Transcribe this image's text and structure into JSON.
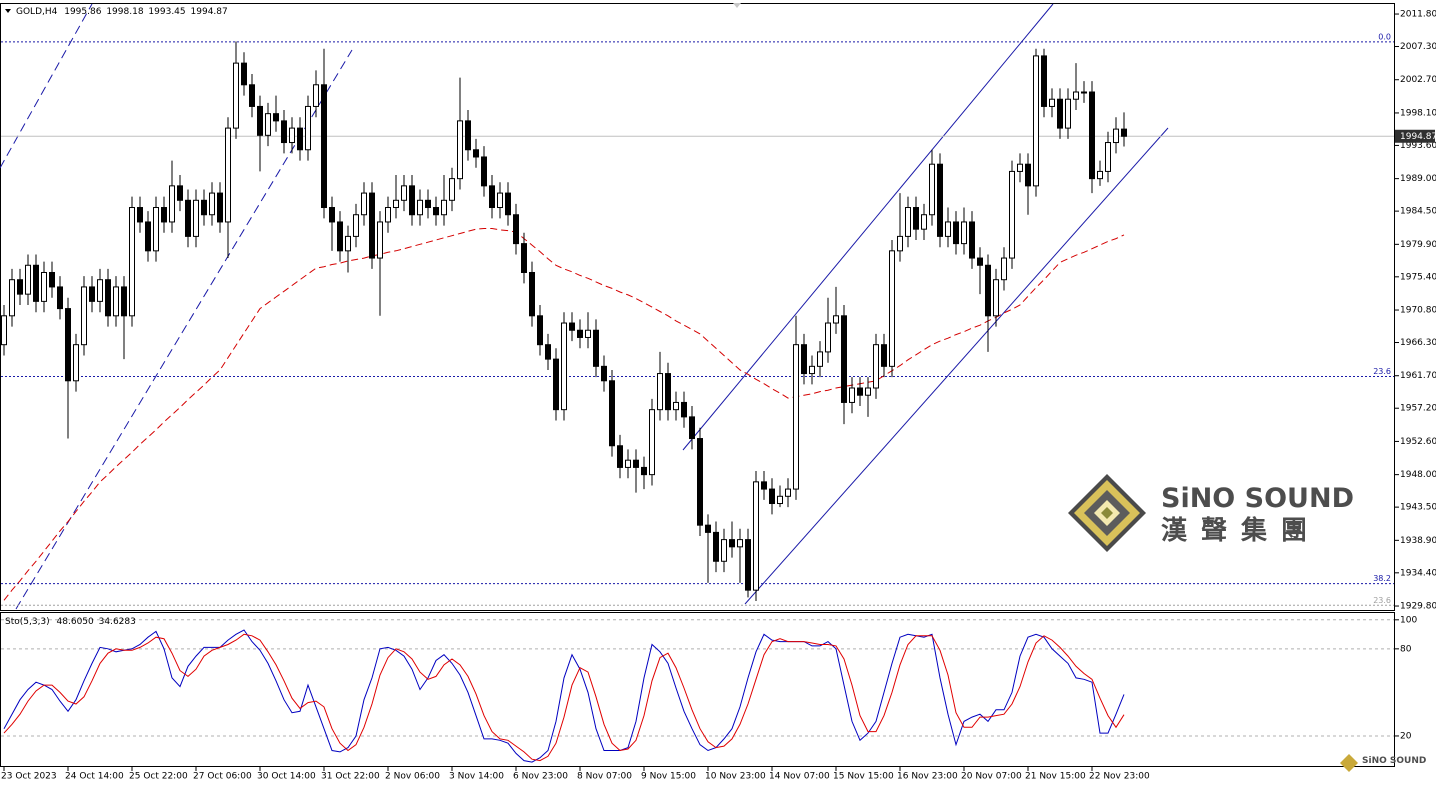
{
  "chart_data": {
    "type": "candlestick",
    "symbol": "GOLD,H4",
    "categories": [
      "23 Oct 2023",
      null,
      null,
      null,
      null,
      null,
      null,
      null,
      "24 Oct 14:00",
      null,
      null,
      null,
      null,
      null,
      null,
      null,
      "25 Oct 22:00",
      null,
      null,
      null,
      null,
      null,
      null,
      null,
      "27 Oct 06:00",
      null,
      null,
      null,
      null,
      null,
      null,
      null,
      "30 Oct 14:00",
      null,
      null,
      null,
      null,
      null,
      null,
      null,
      "31 Oct 22:00",
      null,
      null,
      null,
      null,
      null,
      null,
      null,
      "2 Nov 06:00",
      null,
      null,
      null,
      null,
      null,
      null,
      null,
      "3 Nov 14:00",
      null,
      null,
      null,
      null,
      null,
      null,
      null,
      "6 Nov 23:00",
      null,
      null,
      null,
      null,
      null,
      null,
      null,
      "8 Nov 07:00",
      null,
      null,
      null,
      null,
      null,
      null,
      null,
      "9 Nov 15:00",
      null,
      null,
      null,
      null,
      null,
      null,
      null,
      "10 Nov 23:00",
      null,
      null,
      null,
      null,
      null,
      null,
      null,
      "14 Nov 07:00",
      null,
      null,
      null,
      null,
      null,
      null,
      null,
      "15 Nov 15:00",
      null,
      null,
      null,
      null,
      null,
      null,
      null,
      "16 Nov 23:00",
      null,
      null,
      null,
      null,
      null,
      null,
      null,
      "20 Nov 07:00",
      null,
      null,
      null,
      null,
      null,
      null,
      null,
      "21 Nov 15:00",
      null,
      null,
      null,
      null,
      null,
      null,
      null,
      "22 Nov 23:00",
      null,
      null,
      null,
      null
    ],
    "open": [
      1966,
      1970,
      1975,
      1973,
      1977,
      1972,
      1976,
      1974,
      1971,
      1961,
      1966,
      1974,
      1972,
      1975,
      1970,
      1974,
      1970,
      1985,
      1983,
      1979,
      1985,
      1983,
      1988,
      1986,
      1981,
      1986,
      1984,
      1987,
      1983,
      1996,
      2005,
      2002,
      1999,
      1995,
      1998,
      1997,
      1994,
      1996,
      1993,
      1999,
      2002,
      1985,
      1983,
      1979,
      1981,
      1984,
      1987,
      1978,
      1983,
      1985,
      1986,
      1988,
      1984,
      1986,
      1985,
      1984,
      1986,
      1989,
      1997,
      1993,
      1992,
      1988,
      1985,
      1987,
      1984,
      1980,
      1976,
      1970,
      1966,
      1964,
      1957,
      1969,
      1968,
      1967,
      1968,
      1963,
      1961,
      1952,
      1949,
      1950,
      1949,
      1948,
      1957,
      1962,
      1957,
      1958,
      1956,
      1953,
      1941,
      1940,
      1936,
      1939,
      1938,
      1939,
      1932,
      1947,
      1946,
      1944,
      1945,
      1946,
      1966,
      1962,
      1963,
      1965,
      1969,
      1970,
      1958,
      1960,
      1959,
      1960,
      1966,
      1963,
      1979,
      1981,
      1985,
      1982,
      1984,
      1991,
      1981,
      1983,
      1980,
      1983,
      1978,
      1977,
      1970,
      1975,
      1978,
      1990,
      1991,
      1988,
      2006,
      1999,
      2000,
      1996,
      2000,
      2001,
      2001,
      1989,
      1990,
      1994,
      1995.86
    ],
    "high": [
      1971.5,
      1976.5,
      1976.5,
      1978.5,
      1978.5,
      1977.5,
      1977.5,
      1975.5,
      1972.5,
      1967.5,
      1975.5,
      1975.5,
      1976.5,
      1976.5,
      1975.5,
      1975.5,
      1986.5,
      1986.5,
      1984.5,
      1986.5,
      1986.5,
      1991.5,
      1989.5,
      1987.5,
      1987.5,
      1987.5,
      1988.5,
      1988.5,
      1997.5,
      2008,
      2006.5,
      2003.5,
      2000.5,
      1999.5,
      2000.5,
      1998.5,
      1997.5,
      1997.5,
      2000.5,
      2004,
      2007,
      1986.5,
      1984.5,
      1982.5,
      1985.5,
      1988.5,
      1988.5,
      1984.5,
      1986.5,
      1989.5,
      1989.5,
      1989.5,
      1987.5,
      1987.5,
      1986.5,
      1989.5,
      1990.5,
      2003,
      1998.5,
      1994.5,
      1993.5,
      1989.5,
      1988.5,
      1988.5,
      1985.5,
      1981.5,
      1977.5,
      1971.5,
      1967.5,
      1965.5,
      1970.5,
      1970.5,
      1969.5,
      1970.5,
      1969.5,
      1964.5,
      1962.5,
      1953.5,
      1951.5,
      1951.5,
      1950.5,
      1958.5,
      1965,
      1963.5,
      1959.5,
      1959.5,
      1957.5,
      1954.5,
      1942.5,
      1941.5,
      1940.5,
      1941.5,
      1940.5,
      1940.5,
      1948.5,
      1948.5,
      1947.5,
      1946.5,
      1947.5,
      1970,
      1967.5,
      1964.5,
      1966.5,
      1972.5,
      1974,
      1971.5,
      1961.5,
      1961.5,
      1961.5,
      1967.5,
      1967.5,
      1980.5,
      1987,
      1986.5,
      1986.5,
      1985.5,
      1993,
      1992.5,
      1985,
      1984.5,
      1985,
      1984.5,
      1979.5,
      1978.5,
      1976.5,
      1979.5,
      1991.5,
      1992.5,
      1992.5,
      2007,
      2007,
      2001.5,
      2001.5,
      2001.5,
      2005,
      2002.5,
      2002.5,
      1991.5,
      1995.5,
      1997.5,
      1998.18
    ],
    "low": [
      1964.5,
      1968.5,
      1971.5,
      1971.5,
      1970.5,
      1970.5,
      1972.5,
      1969.5,
      1953,
      1959.5,
      1964.5,
      1970.5,
      1970.5,
      1968.5,
      1968.5,
      1964,
      1968.5,
      1981.5,
      1977.5,
      1977.5,
      1981.5,
      1981.5,
      1984.5,
      1979.5,
      1979.5,
      1982.5,
      1982.5,
      1981.5,
      1978,
      1994.5,
      2000.5,
      1997.5,
      1990,
      1993.5,
      1995.5,
      1992.5,
      1992.5,
      1991.5,
      1991.5,
      1997.5,
      1983.5,
      1979,
      1977.5,
      1976,
      1979.5,
      1982.5,
      1976.5,
      1970,
      1981.5,
      1983.5,
      1984.5,
      1982.5,
      1982.5,
      1983.5,
      1982.5,
      1982.5,
      1984.5,
      1987.5,
      1991.5,
      1990.5,
      1986.5,
      1983.5,
      1983.5,
      1982.5,
      1978.5,
      1974.5,
      1968.5,
      1964.5,
      1962.5,
      1955.5,
      1955.5,
      1966.5,
      1965.5,
      1965.5,
      1961.5,
      1959.5,
      1950.5,
      1947.5,
      1947.5,
      1945.5,
      1946,
      1946.5,
      1955.5,
      1955.5,
      1955.5,
      1954.5,
      1951.5,
      1939.5,
      1933,
      1934.5,
      1934.5,
      1936.5,
      1933,
      1931,
      1930.5,
      1944.5,
      1942.5,
      1943.5,
      1943.5,
      1944.5,
      1960.5,
      1960.5,
      1961.5,
      1963.5,
      1967.5,
      1955,
      1956.5,
      1957.5,
      1956,
      1958.5,
      1961.5,
      1961.5,
      1977.5,
      1979.5,
      1980.5,
      1980.5,
      1982.5,
      1979.5,
      1979.5,
      1978.5,
      1978.5,
      1976.5,
      1973,
      1965,
      1968.5,
      1973.5,
      1976.5,
      1988.5,
      1984,
      1986.5,
      1997.5,
      1997.5,
      1994.5,
      1994.5,
      1998.5,
      1999.5,
      1987,
      1988,
      1988.5,
      1992.5,
      1993.45
    ],
    "close": [
      1970,
      1975,
      1973,
      1977,
      1972,
      1976,
      1974,
      1971,
      1961,
      1966,
      1974,
      1972,
      1975,
      1970,
      1974,
      1970,
      1985,
      1983,
      1979,
      1985,
      1983,
      1988,
      1986,
      1981,
      1986,
      1984,
      1987,
      1983,
      1996,
      2005,
      2002,
      1999,
      1995,
      1998,
      1997,
      1994,
      1996,
      1993,
      1999,
      2002,
      1985,
      1983,
      1979,
      1981,
      1984,
      1987,
      1978,
      1983,
      1985,
      1986,
      1988,
      1984,
      1986,
      1985,
      1984,
      1986,
      1989,
      1997,
      1993,
      1992,
      1988,
      1985,
      1987,
      1984,
      1980,
      1976,
      1970,
      1966,
      1964,
      1957,
      1969,
      1968,
      1967,
      1968,
      1963,
      1961,
      1952,
      1949,
      1950,
      1949,
      1948,
      1957,
      1962,
      1957,
      1958,
      1956,
      1953,
      1941,
      1940,
      1936,
      1939,
      1938,
      1939,
      1932,
      1947,
      1946,
      1944,
      1945,
      1946,
      1966,
      1962,
      1963,
      1965,
      1969,
      1970,
      1958,
      1960,
      1959,
      1960,
      1966,
      1963,
      1979,
      1981,
      1985,
      1982,
      1984,
      1991,
      1981,
      1983,
      1980,
      1983,
      1978,
      1977,
      1970,
      1975,
      1978,
      1990,
      1991,
      1988,
      2006,
      1999,
      2000,
      1996,
      2000,
      2001,
      2001,
      1989,
      1990,
      1994,
      1995.86,
      1994.87
    ],
    "up_color": "#ffffff",
    "down_color": "#000000",
    "ylim": [
      1929.25,
      2013.19
    ],
    "yticks": [
      {
        "value": 2011.8,
        "label": "2011.80"
      },
      {
        "value": 2007.3,
        "label": "2007.30"
      },
      {
        "value": 2002.7,
        "label": "2002.70"
      },
      {
        "value": 1998.1,
        "label": "1998.10"
      },
      {
        "value": 1993.6,
        "label": "1993.60"
      },
      {
        "value": 1989,
        "label": "1989.00"
      },
      {
        "value": 1984.5,
        "label": "1984.50"
      },
      {
        "value": 1979.9,
        "label": "1979.90"
      },
      {
        "value": 1975.4,
        "label": "1975.40"
      },
      {
        "value": 1970.8,
        "label": "1970.80"
      },
      {
        "value": 1966.3,
        "label": "1966.30"
      },
      {
        "value": 1961.7,
        "label": "1961.70"
      },
      {
        "value": 1957.2,
        "label": "1957.20"
      },
      {
        "value": 1952.6,
        "label": "1952.60"
      },
      {
        "value": 1948,
        "label": "1948.00"
      },
      {
        "value": 1943.5,
        "label": "1943.50"
      },
      {
        "value": 1938.9,
        "label": "1938.90"
      },
      {
        "value": 1934.4,
        "label": "1934.40"
      },
      {
        "value": 1929.8,
        "label": "1929.80"
      }
    ],
    "moving_average": {
      "type": "line",
      "color": "#d40000",
      "values": [
        1930.6,
        1932,
        1933.3,
        1934.7,
        1936,
        1937.4,
        1938.8,
        1940.2,
        1941.5,
        1942.9,
        1944.3,
        1945.6,
        1947,
        1948,
        1949.1,
        1950.1,
        1951.1,
        1952.2,
        1953.2,
        1954.2,
        1955.3,
        1956.3,
        1957.3,
        1958.4,
        1959.4,
        1960.4,
        1961.5,
        1962.5,
        1964.2,
        1965.9,
        1967.6,
        1969.3,
        1971,
        1971.8,
        1972.6,
        1973.4,
        1974.2,
        1975,
        1975.8,
        1976.6,
        1976.8,
        1977.1,
        1977.3,
        1977.6,
        1977.8,
        1978,
        1978.3,
        1978.5,
        1978.8,
        1979,
        1979.3,
        1979.6,
        1979.9,
        1980.2,
        1980.5,
        1980.8,
        1981.1,
        1981.4,
        1981.7,
        1982,
        1982.1,
        1982.1,
        1981.9,
        1981.8,
        1981.6,
        1980.7,
        1979.8,
        1978.9,
        1977.9,
        1977,
        1976.5,
        1976.1,
        1975.6,
        1975.2,
        1974.7,
        1974.2,
        1973.8,
        1973.3,
        1972.9,
        1972.4,
        1971.8,
        1971.2,
        1970.6,
        1970,
        1969.3,
        1968.7,
        1968.1,
        1967.5,
        1966.5,
        1965.5,
        1964.5,
        1963.5,
        1962.5,
        1961.9,
        1961.2,
        1960.6,
        1959.9,
        1959.3,
        1958.6,
        1958.8,
        1959,
        1959.2,
        1959.5,
        1959.7,
        1960,
        1960.2,
        1960.4,
        1960.6,
        1960.8,
        1961,
        1961.7,
        1962.4,
        1963.1,
        1963.9,
        1964.6,
        1965.3,
        1966,
        1966.5,
        1966.9,
        1967.4,
        1967.8,
        1968.3,
        1968.7,
        1969.3,
        1969.8,
        1970.4,
        1970.9,
        1971.5,
        1972.7,
        1973.9,
        1975,
        1976.2,
        1977.4,
        1977.9,
        1978.4,
        1978.8,
        1979.3,
        1979.8,
        1980.3,
        1980.7,
        1981.2
      ]
    },
    "fibonacci": [
      {
        "value": 2007.95,
        "label": "0.0",
        "color": "#1a1aa8"
      },
      {
        "value": 1961.6,
        "label": "23.6",
        "color": "#1a1aa8"
      },
      {
        "value": 1932.9,
        "label": "38.2",
        "color": "#1a1aa8"
      },
      {
        "value": 1929.9,
        "label": "23.6",
        "color": "#a0a0a0"
      }
    ],
    "indicator": {
      "type": "line",
      "label": "Sto(5,3,3)",
      "last_label": "48.6050",
      "ylim": [
        0,
        104
      ],
      "yticks": [
        100,
        80,
        20
      ],
      "grid": true,
      "series": [
        {
          "color": "#0000c0",
          "values": [
            25,
            35,
            45,
            52,
            57,
            55,
            52,
            44,
            37,
            45,
            58,
            70,
            81,
            80,
            78,
            79,
            80,
            83,
            88,
            92,
            80,
            60,
            54,
            68,
            75,
            81,
            81,
            81,
            86,
            90,
            93,
            85,
            79,
            70,
            58,
            45,
            36,
            37,
            55,
            40,
            25,
            10,
            9,
            12,
            20,
            45,
            60,
            80,
            81,
            79,
            75,
            66,
            52,
            60,
            72,
            76,
            70,
            62,
            50,
            34,
            18,
            18,
            17,
            15,
            8,
            3,
            2,
            5,
            10,
            30,
            60,
            76,
            66,
            50,
            25,
            10,
            10,
            10,
            12,
            30,
            60,
            83,
            78,
            70,
            53,
            37,
            25,
            14,
            10,
            12,
            18,
            25,
            40,
            60,
            78,
            90,
            86,
            85,
            85,
            85,
            85,
            82,
            82,
            85,
            80,
            55,
            30,
            17,
            22,
            30,
            50,
            70,
            88,
            90,
            89,
            88,
            90,
            60,
            35,
            14,
            30,
            33,
            35,
            30,
            38,
            38,
            50,
            75,
            88,
            90,
            88,
            80,
            75,
            70,
            60,
            59,
            57,
            22,
            22,
            35,
            48.605
          ]
        },
        {
          "color": "#e00000",
          "values": [
            22,
            28,
            35,
            44,
            51,
            55,
            55,
            50,
            44,
            42,
            47,
            58,
            70,
            77,
            80,
            79,
            79,
            81,
            84,
            88,
            87,
            77,
            65,
            61,
            66,
            75,
            79,
            81,
            83,
            86,
            90,
            89,
            86,
            78,
            69,
            58,
            46,
            39,
            43,
            44,
            40,
            25,
            15,
            10,
            14,
            26,
            42,
            62,
            74,
            80,
            78,
            73,
            64,
            59,
            61,
            69,
            73,
            69,
            61,
            49,
            34,
            23,
            18,
            17,
            13,
            9,
            4,
            3,
            6,
            15,
            33,
            55,
            67,
            64,
            47,
            28,
            15,
            10,
            11,
            17,
            34,
            58,
            74,
            77,
            67,
            53,
            38,
            25,
            16,
            12,
            13,
            18,
            28,
            42,
            59,
            76,
            85,
            87,
            85,
            85,
            85,
            84,
            83,
            83,
            82,
            73,
            55,
            34,
            23,
            23,
            34,
            50,
            69,
            83,
            89,
            89,
            89,
            79,
            62,
            36,
            26,
            26,
            33,
            33,
            34,
            35,
            42,
            54,
            71,
            84,
            89,
            86,
            81,
            75,
            68,
            63,
            59,
            46,
            34,
            26,
            34.6283
          ]
        }
      ]
    }
  },
  "watermark": {
    "brand": "SiNO SOUND",
    "chinese": "漢聲集團"
  }
}
